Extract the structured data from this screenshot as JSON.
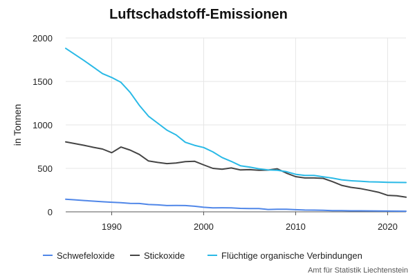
{
  "chart_data": {
    "type": "line",
    "title": "Luftschadstoff-Emissionen",
    "xlabel": "",
    "ylabel": "in Tonnen",
    "xlim": [
      1985,
      2022
    ],
    "ylim": [
      0,
      2000
    ],
    "x_ticks": [
      1990,
      2000,
      2010,
      2020
    ],
    "y_ticks": [
      0,
      500,
      1000,
      1500,
      2000
    ],
    "grid": true,
    "legend": "bottom",
    "x": [
      1985,
      1986,
      1987,
      1988,
      1989,
      1990,
      1991,
      1992,
      1993,
      1994,
      1995,
      1996,
      1997,
      1998,
      1999,
      2000,
      2001,
      2002,
      2003,
      2004,
      2005,
      2006,
      2007,
      2008,
      2009,
      2010,
      2011,
      2012,
      2013,
      2014,
      2015,
      2016,
      2017,
      2018,
      2019,
      2020,
      2021,
      2022
    ],
    "series": [
      {
        "name": "Schwefeloxide",
        "color": "#4f86e8",
        "values": [
          145,
          138,
          130,
          123,
          116,
          110,
          105,
          98,
          96,
          84,
          80,
          72,
          74,
          72,
          64,
          52,
          46,
          47,
          46,
          40,
          38,
          38,
          27,
          30,
          30,
          25,
          21,
          20,
          18,
          14,
          14,
          12,
          12,
          11,
          10,
          9,
          8,
          7
        ]
      },
      {
        "name": "Stickoxide",
        "color": "#444444",
        "values": [
          805,
          785,
          765,
          742,
          722,
          680,
          745,
          710,
          660,
          585,
          568,
          555,
          562,
          578,
          582,
          540,
          500,
          490,
          505,
          482,
          485,
          478,
          480,
          495,
          445,
          405,
          390,
          390,
          385,
          348,
          305,
          282,
          268,
          248,
          225,
          190,
          185,
          168
        ]
      },
      {
        "name": "Flüchtige organische Verbindungen",
        "color": "#29b9e6",
        "values": [
          1880,
          1810,
          1740,
          1665,
          1590,
          1545,
          1490,
          1375,
          1225,
          1100,
          1020,
          940,
          885,
          800,
          765,
          740,
          690,
          625,
          580,
          530,
          515,
          495,
          482,
          478,
          462,
          432,
          418,
          418,
          403,
          388,
          368,
          358,
          352,
          345,
          343,
          340,
          338,
          337
        ]
      }
    ]
  },
  "source_note": "Amt für Statistik Liechtenstein"
}
